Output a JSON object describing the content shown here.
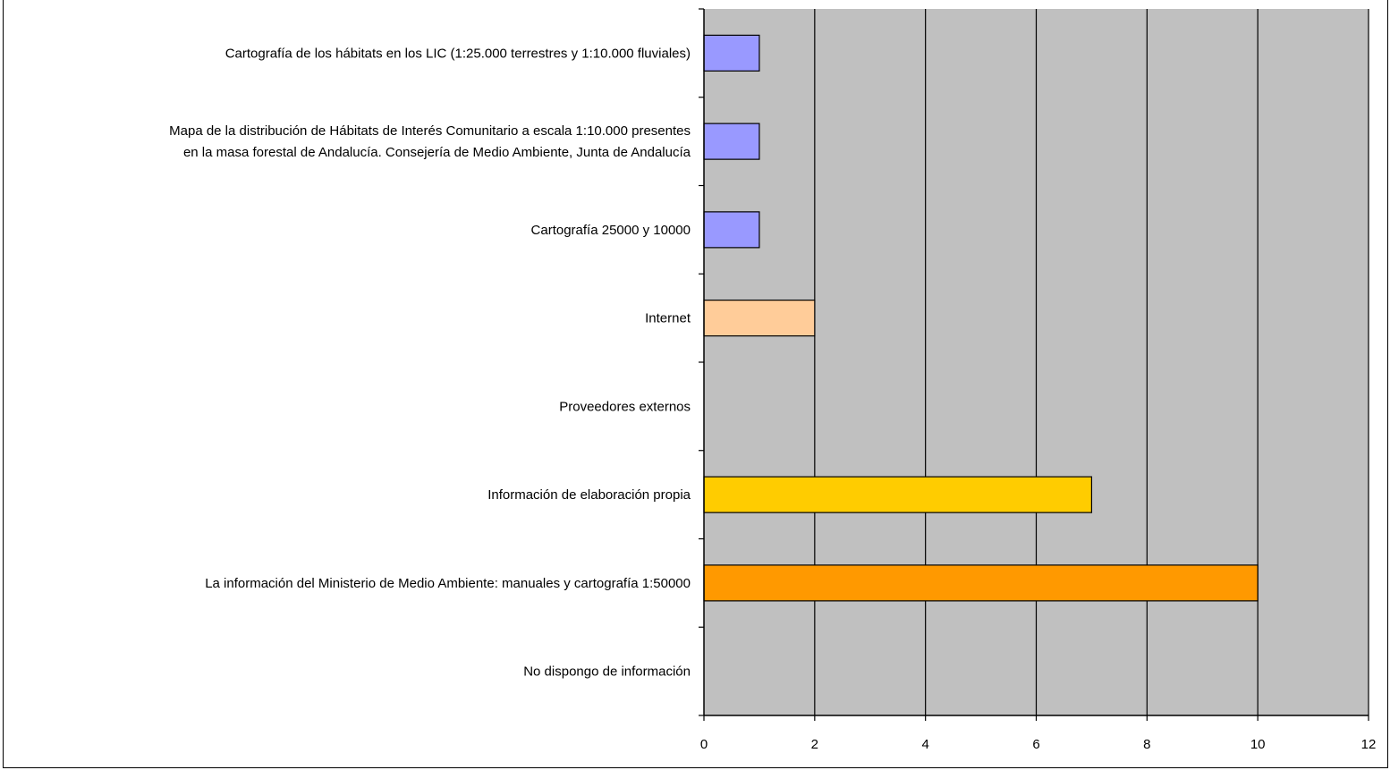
{
  "chart_data": {
    "type": "bar",
    "orientation": "horizontal",
    "title": "",
    "xlabel": "",
    "ylabel": "",
    "xlim": [
      0,
      12
    ],
    "x_ticks": [
      0,
      2,
      4,
      6,
      8,
      10,
      12
    ],
    "x_tick_labels": [
      "0",
      "2",
      "4",
      "6",
      "8",
      "10",
      "12"
    ],
    "grid": "vertical",
    "plot_background": "#c0c0c0",
    "categories": [
      {
        "lines": [
          "Cartografía de los hábitats en los LIC (1:25.000 terrestres y 1:10.000 fluviales)"
        ],
        "value": 1,
        "color": "#9999ff"
      },
      {
        "lines": [
          "Mapa de la distribución de Hábitats de Interés Comunitario a escala 1:10.000 presentes",
          "en la masa forestal de Andalucía. Consejería de Medio Ambiente, Junta de Andalucía"
        ],
        "value": 1,
        "color": "#9999ff"
      },
      {
        "lines": [
          "Cartografía 25000 y 10000"
        ],
        "value": 1,
        "color": "#9999ff"
      },
      {
        "lines": [
          "Internet"
        ],
        "value": 2,
        "color": "#ffcc99"
      },
      {
        "lines": [
          "Proveedores externos"
        ],
        "value": 0,
        "color": "#ffcc00"
      },
      {
        "lines": [
          "Información de elaboración propia"
        ],
        "value": 7,
        "color": "#ffcc00"
      },
      {
        "lines": [
          "La información del Ministerio de Medio Ambiente: manuales y cartografía 1:50000"
        ],
        "value": 10,
        "color": "#ff9900"
      },
      {
        "lines": [
          "No dispongo de información"
        ],
        "value": 0,
        "color": "#ff9900"
      }
    ]
  }
}
